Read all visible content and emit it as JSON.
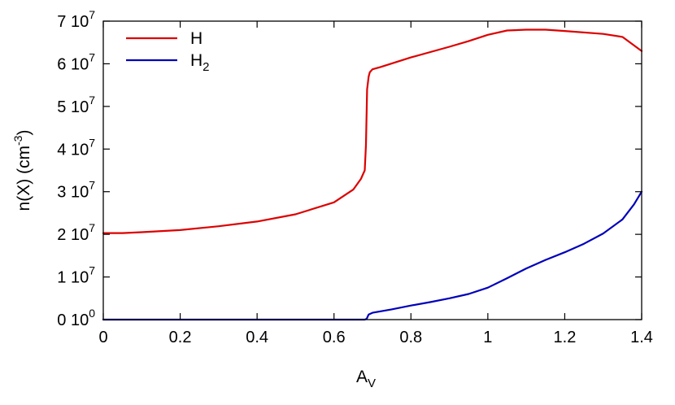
{
  "chart_data": {
    "type": "line",
    "xlabel": "A",
    "xlabel_sub": "V",
    "ylabel": "n(X) (cm",
    "ylabel_sup": "-3",
    "ylabel_close": ")",
    "xlim": [
      0,
      1.4
    ],
    "ylim": [
      0,
      70000000
    ],
    "grid": false,
    "legend_position": "top-left",
    "x_ticks": [
      {
        "value": 0,
        "label": "0"
      },
      {
        "value": 0.2,
        "label": "0.2"
      },
      {
        "value": 0.4,
        "label": "0.4"
      },
      {
        "value": 0.6,
        "label": "0.6"
      },
      {
        "value": 0.8,
        "label": "0.8"
      },
      {
        "value": 1.0,
        "label": "1"
      },
      {
        "value": 1.2,
        "label": "1.2"
      },
      {
        "value": 1.4,
        "label": "1.4"
      }
    ],
    "y_ticks": [
      {
        "value": 0,
        "mantissa": "0 10",
        "exponent": "0"
      },
      {
        "value": 10000000,
        "mantissa": "1 10",
        "exponent": "7"
      },
      {
        "value": 20000000,
        "mantissa": "2 10",
        "exponent": "7"
      },
      {
        "value": 30000000,
        "mantissa": "3 10",
        "exponent": "7"
      },
      {
        "value": 40000000,
        "mantissa": "4 10",
        "exponent": "7"
      },
      {
        "value": 50000000,
        "mantissa": "5 10",
        "exponent": "7"
      },
      {
        "value": 60000000,
        "mantissa": "6 10",
        "exponent": "7"
      },
      {
        "value": 70000000,
        "mantissa": "7 10",
        "exponent": "7"
      }
    ],
    "series": [
      {
        "name": "H",
        "name_sub": "",
        "color": "#dd0000",
        "x": [
          0,
          0.05,
          0.1,
          0.2,
          0.3,
          0.4,
          0.5,
          0.6,
          0.65,
          0.67,
          0.68,
          0.683,
          0.686,
          0.69,
          0.693,
          0.7,
          0.72,
          0.8,
          0.9,
          0.95,
          1.0,
          1.05,
          1.1,
          1.15,
          1.2,
          1.3,
          1.35,
          1.4
        ],
        "y": [
          20300000,
          20300000,
          20500000,
          21000000,
          21900000,
          23000000,
          24700000,
          27500000,
          30500000,
          33000000,
          35000000,
          41000000,
          54000000,
          57000000,
          58000000,
          58700000,
          59200000,
          61500000,
          64000000,
          65300000,
          66800000,
          67800000,
          68000000,
          68000000,
          67700000,
          67000000,
          66300000,
          63000000
        ]
      },
      {
        "name": "H",
        "name_sub": "2",
        "color": "#0000bb",
        "x": [
          0,
          0.2,
          0.4,
          0.6,
          0.68,
          0.685,
          0.69,
          0.7,
          0.75,
          0.8,
          0.85,
          0.9,
          0.95,
          1.0,
          1.05,
          1.1,
          1.15,
          1.2,
          1.25,
          1.3,
          1.35,
          1.38,
          1.4
        ],
        "y": [
          0,
          0,
          0,
          0,
          0,
          200000,
          1200000,
          1600000,
          2400000,
          3300000,
          4100000,
          5000000,
          6000000,
          7500000,
          9700000,
          12000000,
          14000000,
          15800000,
          17800000,
          20200000,
          23500000,
          27000000,
          30000000
        ]
      }
    ]
  }
}
